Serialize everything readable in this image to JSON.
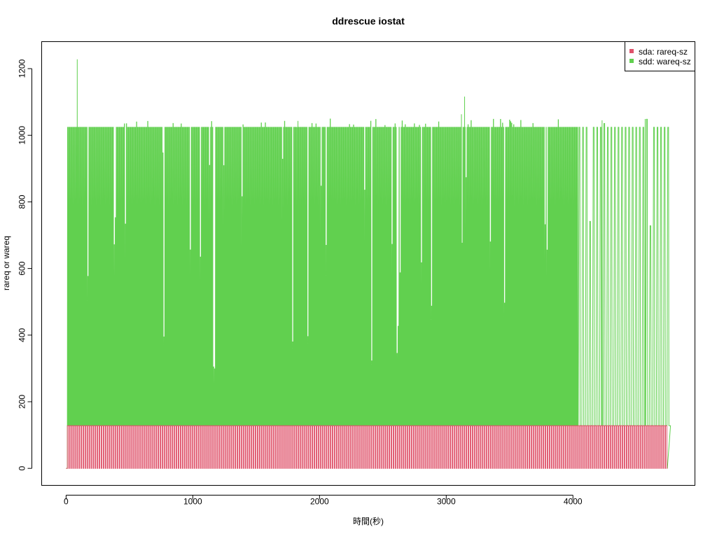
{
  "chart_data": {
    "type": "line",
    "title": "ddrescue iostat",
    "xlabel": "時間(秒)",
    "ylabel": "rareq or wareq",
    "xlim": [
      -190,
      4960
    ],
    "ylim": [
      -50,
      1280
    ],
    "x_ticks": [
      0,
      1000,
      2000,
      3000,
      4000
    ],
    "x_tick_labels": [
      "0",
      "1000",
      "2000",
      "3000",
      "4000"
    ],
    "y_ticks": [
      0,
      200,
      400,
      600,
      800,
      1000,
      1200
    ],
    "y_tick_labels": [
      "0",
      "200",
      "400",
      "600",
      "800",
      "1000",
      "1200"
    ],
    "x_range": [
      0,
      4745
    ],
    "grid": false,
    "legend_position": "top-right",
    "series": [
      {
        "name": "sda: rareq-sz",
        "color": "#DF536B",
        "pattern": "square-wave",
        "low": 0,
        "high": 128,
        "period_seconds": 16,
        "start": 10,
        "end": 4745
      },
      {
        "name": "sdd: wareq-sz",
        "color": "#61D04F",
        "pattern": "spikes",
        "baseline": 128,
        "typical_peak": 1024,
        "period_seconds": 8,
        "start": 10,
        "end": 4745,
        "sparse_after": 4040,
        "sparse_period_seconds": 28,
        "notable_peaks": [
          {
            "x": 88,
            "y": 1228
          },
          {
            "x": 3145,
            "y": 1116
          },
          {
            "x": 3120,
            "y": 1063
          },
          {
            "x": 4570,
            "y": 1049
          },
          {
            "x": 1830,
            "y": 1043
          },
          {
            "x": 4230,
            "y": 1045
          }
        ]
      }
    ]
  }
}
